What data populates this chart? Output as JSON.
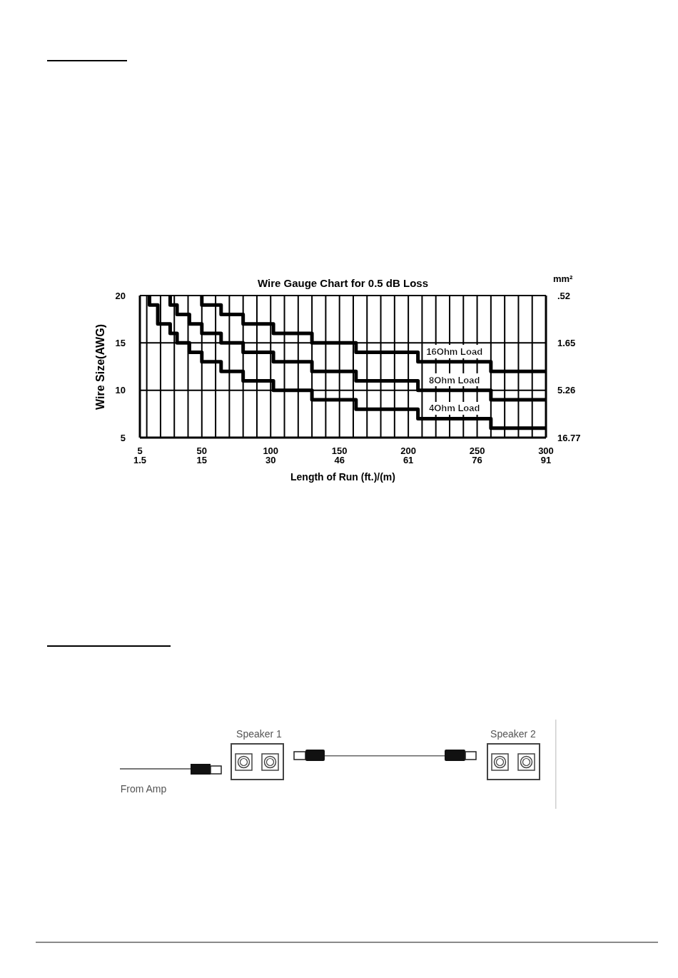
{
  "chart_data": [
    {
      "type": "step",
      "title": "Wire Gauge Chart for 0.5 dB Loss",
      "xlabel": "Length of Run (ft.)/(m)",
      "ylabel": "Wire Size(AWG)",
      "y2label": "mm²",
      "x": [
        12,
        18,
        27,
        32,
        41,
        50,
        64,
        80,
        102,
        130,
        162,
        207,
        260,
        300
      ],
      "series": [
        {
          "name": "16Ohm Load",
          "color": "#000000",
          "values": [
            null,
            null,
            null,
            null,
            null,
            20,
            19,
            18,
            17,
            16,
            15,
            14,
            13,
            12
          ]
        },
        {
          "name": "8Ohm Load",
          "color": "#000000",
          "values": [
            null,
            null,
            20,
            19,
            18,
            17,
            16,
            15,
            14,
            13,
            12,
            11,
            10,
            9
          ]
        },
        {
          "name": "4Ohm Load",
          "color": "#000000",
          "values": [
            20,
            19,
            17,
            16,
            15,
            14,
            13,
            12,
            11,
            10,
            9,
            8,
            7,
            6
          ]
        }
      ],
      "xlim": [
        5,
        300
      ],
      "xticks": [
        5,
        {
          "value": 10,
          "label": null
        },
        {
          "value": 20,
          "label": null
        },
        {
          "value": 30,
          "label": null
        },
        {
          "value": 40,
          "label": null
        },
        50,
        {
          "value": 60,
          "label": null
        },
        {
          "value": 70,
          "label": null
        },
        {
          "value": 80,
          "label": null
        },
        {
          "value": 90,
          "label": null
        },
        100,
        {
          "value": 110,
          "label": null
        },
        {
          "value": 120,
          "label": null
        },
        {
          "value": 130,
          "label": null
        },
        {
          "value": 140,
          "label": null
        },
        150,
        {
          "value": 160,
          "label": null
        },
        {
          "value": 170,
          "label": null
        },
        {
          "value": 180,
          "label": null
        },
        {
          "value": 190,
          "label": null
        },
        200,
        {
          "value": 210,
          "label": null
        },
        {
          "value": 220,
          "label": null
        },
        {
          "value": 230,
          "label": null
        },
        {
          "value": 240,
          "label": null
        },
        250,
        {
          "value": 260,
          "label": null
        },
        {
          "value": 270,
          "label": null
        },
        {
          "value": 280,
          "label": null
        },
        {
          "value": 290,
          "label": null
        },
        300
      ],
      "x2lim": [
        1.524,
        91.44
      ],
      "x2ticks": [
        {
          "value": 1.524,
          "label": "1.5"
        },
        {
          "value": 15.24,
          "label": "15"
        },
        {
          "value": 30.48,
          "label": "30"
        },
        {
          "value": 45.72,
          "label": "46"
        },
        {
          "value": 60.96,
          "label": "61"
        },
        {
          "value": 76.2,
          "label": "76"
        },
        {
          "value": 91.44,
          "label": "91"
        }
      ],
      "ylim": [
        5,
        20
      ],
      "yticks": [
        5,
        10,
        15,
        20
      ],
      "y2lim": [
        16.77,
        0.52
      ],
      "y2ticks": [
        16.77,
        5.26,
        1.65,
        {
          "value": 0.52,
          "label": ".52"
        }
      ],
      "log": "y2",
      "grid": true
    },
    {
      "type": "other",
      "annotations": [
        "From Amp",
        "Speaker 1",
        "Speaker 2"
      ]
    }
  ]
}
